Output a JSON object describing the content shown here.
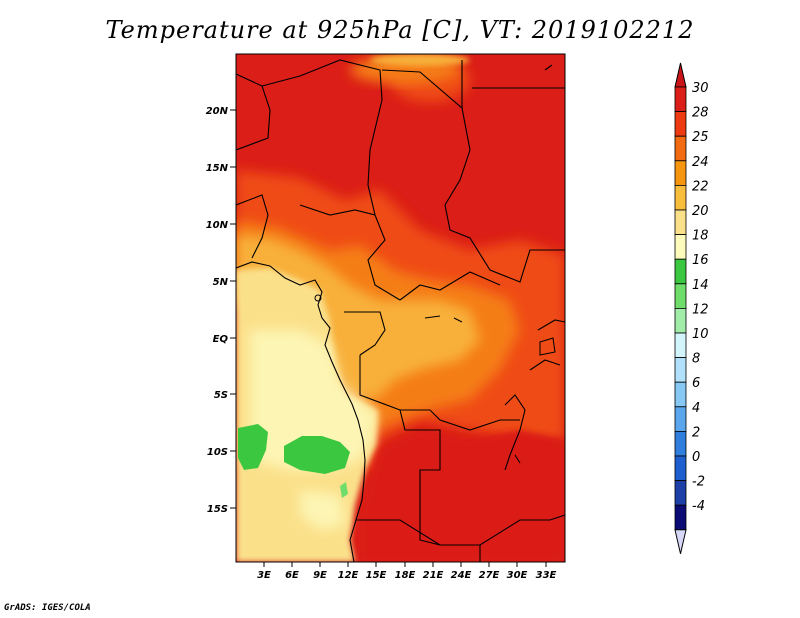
{
  "title": "Temperature at 925hPa [C], VT: 2019102212",
  "credit": "GrADS: IGES/COLA",
  "map": {
    "lat_labels": [
      "20N",
      "15N",
      "10N",
      "5N",
      "EQ",
      "5S",
      "10S",
      "15S"
    ],
    "lon_labels": [
      "3E",
      "6E",
      "9E",
      "12E",
      "15E",
      "18E",
      "21E",
      "24E",
      "27E",
      "30E",
      "33E"
    ]
  },
  "colorbar": {
    "levels": [
      "30",
      "28",
      "25",
      "24",
      "22",
      "20",
      "18",
      "16",
      "14",
      "12",
      "10",
      "8",
      "6",
      "4",
      "2",
      "0",
      "-2",
      "-4"
    ],
    "colors": [
      "#db1e17",
      "#ee3a10",
      "#f26a12",
      "#f6950f",
      "#f8bd3c",
      "#fbe08a",
      "#fdfbbc",
      "#3cc741",
      "#6fdd6a",
      "#a2ecaa",
      "#d2f5fc",
      "#b2e2fb",
      "#87c8f5",
      "#5aa6ec",
      "#2f7ede",
      "#1e5fcf",
      "#1c3fa8",
      "#0b0b75"
    ],
    "over_color": "#c9151a",
    "under_color": "#d7d7f7"
  },
  "colors": {
    "hot": "#db1e17",
    "warm": "#ef4b12",
    "orange": "#f57d13",
    "light_orange": "#f8b03a",
    "pale": "#fbe08a",
    "cream": "#fdf5b4",
    "green": "#3cc741"
  }
}
